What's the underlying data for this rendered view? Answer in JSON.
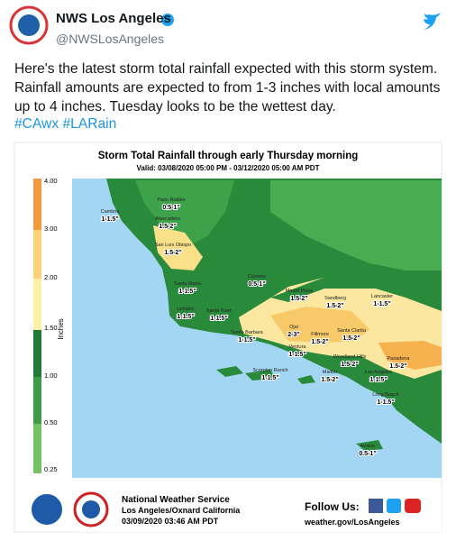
{
  "tweet": {
    "name": "NWS Los Angeles",
    "handle": "@NWSLosAngeles",
    "text": "Here's the latest storm total rainfall expected with this storm system.  Rainfall amounts are expected to from 1-3 inches with local amounts up to 4 inches. Tuesday looks to be the wettest day.",
    "hashtags": [
      "#CAwx",
      "#LARain"
    ]
  },
  "image": {
    "title": "Storm Total Rainfall through early Thursday morning",
    "subtitle": "Valid: 03/08/2020 05:00 PM - 03/12/2020 05:00 AM PDT",
    "legend": {
      "label": "Inches",
      "ticks": [
        "4.00",
        "3.00",
        "2.00",
        "1.50",
        "1.00",
        "0.50",
        "0.25"
      ]
    },
    "places": [
      {
        "name": "Paso Robles",
        "amount": "0.5-1\""
      },
      {
        "name": "Cambria",
        "amount": "1-1.5\""
      },
      {
        "name": "Atascadero",
        "amount": "1.5-2\""
      },
      {
        "name": "San Luis Obispo",
        "amount": "1.5-2\""
      },
      {
        "name": "Santa Maria",
        "amount": "1-1.5\""
      },
      {
        "name": "Cuyama",
        "amount": "0.5-1\""
      },
      {
        "name": "Mount Pinos",
        "amount": "1.5-2\""
      },
      {
        "name": "Sandberg",
        "amount": "1.5-2\""
      },
      {
        "name": "Lancaster",
        "amount": "1-1.5\""
      },
      {
        "name": "Lompoc",
        "amount": "1-1.5\""
      },
      {
        "name": "Santa Ynez",
        "amount": "1-1.5\""
      },
      {
        "name": "Ojai",
        "amount": "2-3\""
      },
      {
        "name": "Santa Clarita",
        "amount": "1.5-2\""
      },
      {
        "name": "Santa Barbara",
        "amount": "1-1.5\""
      },
      {
        "name": "Fillmore",
        "amount": "1.5-2\""
      },
      {
        "name": "Ventura",
        "amount": "1-1.5\""
      },
      {
        "name": "Woodland Hills",
        "amount": "1.5-2\""
      },
      {
        "name": "Pasadena",
        "amount": "1.5-2\""
      },
      {
        "name": "Scorpion Ranch",
        "amount": "1-1.5\""
      },
      {
        "name": "Malibu",
        "amount": "1.5-2\""
      },
      {
        "name": "Los Angeles",
        "amount": "1-1.5\""
      },
      {
        "name": "Long Beach",
        "amount": "1-1.5\""
      },
      {
        "name": "Avalon",
        "amount": "0.5-1\""
      }
    ],
    "footer": {
      "org": "National Weather Service",
      "office": "Los Angeles/Oxnard California",
      "issued": "03/09/2020 03:46 AM PDT",
      "follow": "Follow Us:",
      "url": "weather.gov/LosAngeles"
    }
  }
}
